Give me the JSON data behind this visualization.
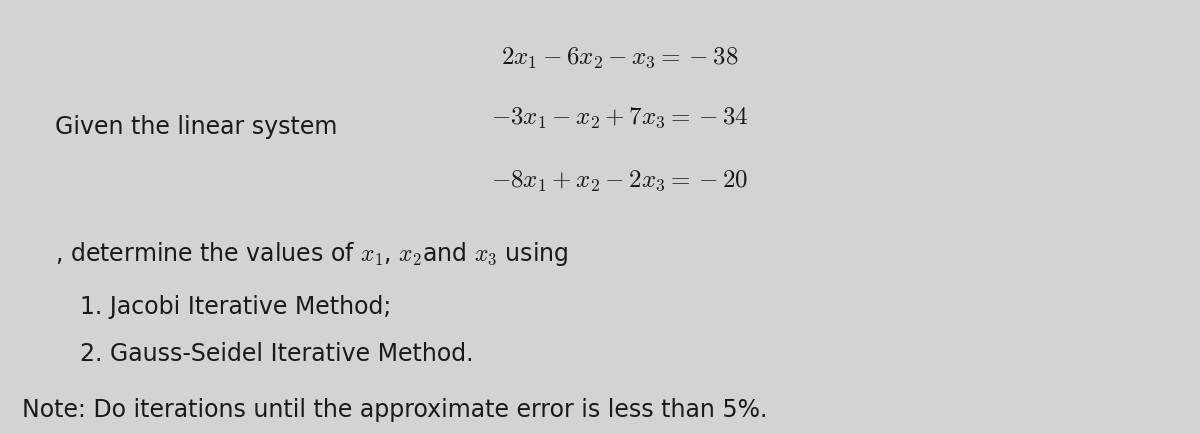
{
  "background_color": "#d3d3d3",
  "text_color": "#1a1a1a",
  "figsize": [
    12.0,
    4.34
  ],
  "dpi": 100,
  "eq1": "$2x_1-6x_2-x_3=-38$",
  "eq2": "$-3x_1-x_2+7x_3=-34$",
  "eq3": "$-8x_1+x_2-2x_3=-20$",
  "given_label": "Given the linear system",
  "determine_text": ", determine the values of $x_1$, $x_2$and $x_3$ using",
  "item1": "1. Jacobi Iterative Method;",
  "item2": "2. Gauss-Seidel Iterative Method.",
  "note": "Note: Do iterations until the approximate error is less than 5%.",
  "eq_fontsize": 18,
  "label_fontsize": 17,
  "body_fontsize": 17,
  "note_fontsize": 17
}
